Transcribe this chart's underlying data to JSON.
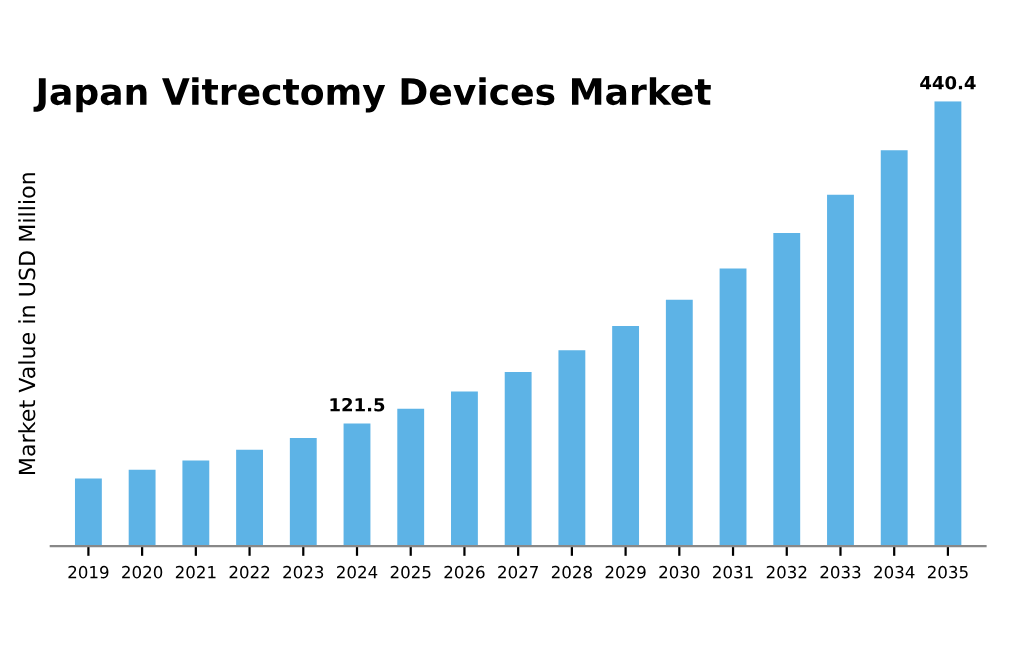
{
  "chart_data": {
    "type": "bar",
    "title": "Japan Vitrectomy Devices Market",
    "ylabel": "Market Value in USD Million",
    "categories": [
      "2019",
      "2020",
      "2021",
      "2022",
      "2023",
      "2024",
      "2025",
      "2026",
      "2027",
      "2028",
      "2029",
      "2030",
      "2031",
      "2032",
      "2033",
      "2034",
      "2035"
    ],
    "values": [
      67,
      75.5,
      84.8,
      95.5,
      107,
      121.5,
      136,
      153,
      172.5,
      194,
      218,
      244,
      275,
      310,
      348,
      392,
      440.4
    ],
    "value_labels": [
      null,
      null,
      null,
      null,
      null,
      "121.5",
      null,
      null,
      null,
      null,
      null,
      null,
      null,
      null,
      null,
      null,
      "440.4"
    ],
    "color": "#5db3e6",
    "grid": false,
    "legend": false
  }
}
